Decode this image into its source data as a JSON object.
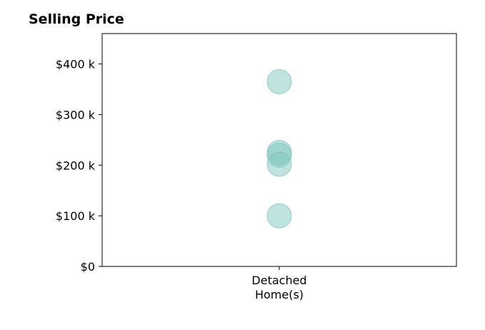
{
  "chart_data": {
    "type": "scatter",
    "title": "Selling Price",
    "xlabel": "",
    "ylabel": "",
    "categories": [
      "Detached\nHome(s)"
    ],
    "category_lines": [
      "Detached",
      "Home(s)"
    ],
    "series": [
      {
        "category": "Detached\nHome(s)",
        "values": [
          365000,
          225000,
          220000,
          202000,
          100000
        ]
      }
    ],
    "ylim": [
      0,
      460000
    ],
    "yticks": [
      0,
      100000,
      200000,
      300000,
      400000
    ],
    "ytick_labels": [
      "$0",
      "$100 k",
      "$200 k",
      "$300 k",
      "$400 k"
    ],
    "grid": false,
    "marker_color": "#7fc7bf",
    "marker_opacity": 0.5
  }
}
